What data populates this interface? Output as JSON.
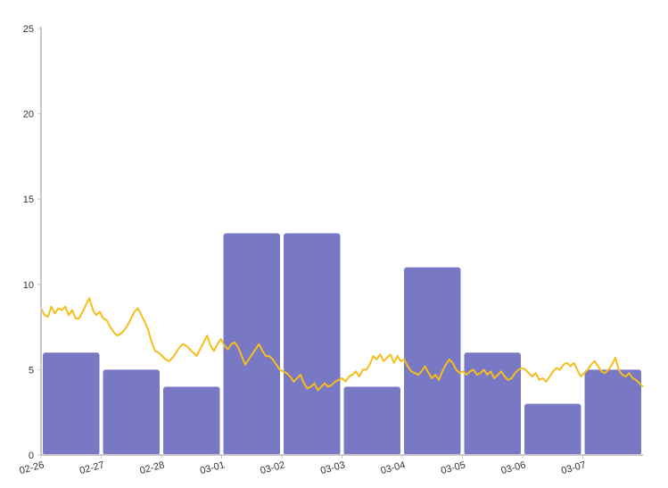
{
  "chart_data": {
    "type": "bar",
    "title": "",
    "xlabel": "",
    "ylabel": "",
    "ylim": [
      0,
      25
    ],
    "yticks": [
      0,
      5,
      10,
      15,
      20,
      25
    ],
    "categories": [
      "02-26",
      "02-27",
      "02-28",
      "03-01",
      "03-02",
      "03-03",
      "03-04",
      "03-05",
      "03-06",
      "03-07"
    ],
    "bar_values": [
      6,
      5,
      4,
      13,
      13,
      4,
      11,
      6,
      3,
      5
    ],
    "line_values": [
      8.6,
      8.2,
      8.1,
      8.7,
      8.3,
      8.6,
      8.5,
      8.7,
      8.2,
      8.5,
      8.0,
      8.0,
      8.4,
      8.8,
      9.2,
      8.5,
      8.2,
      8.4,
      8.0,
      7.9,
      7.5,
      7.2,
      7.0,
      7.1,
      7.3,
      7.6,
      8.0,
      8.4,
      8.6,
      8.2,
      7.8,
      7.3,
      6.6,
      6.1,
      6.0,
      5.8,
      5.6,
      5.5,
      5.7,
      6.0,
      6.3,
      6.5,
      6.4,
      6.2,
      6.0,
      5.8,
      6.2,
      6.6,
      7.0,
      6.4,
      6.1,
      6.5,
      6.8,
      6.4,
      6.2,
      6.5,
      6.6,
      6.3,
      5.8,
      5.3,
      5.6,
      5.9,
      6.2,
      6.5,
      6.1,
      5.8,
      5.8,
      5.6,
      5.3,
      5.0,
      4.9,
      4.8,
      4.6,
      4.3,
      4.5,
      4.7,
      4.2,
      3.9,
      4.0,
      4.2,
      3.8,
      4.0,
      4.2,
      4.0,
      4.1,
      4.3,
      4.4,
      4.5,
      4.3,
      4.6,
      4.7,
      4.9,
      4.6,
      5.0,
      5.0,
      5.3,
      5.8,
      5.6,
      5.9,
      5.5,
      5.7,
      5.9,
      5.4,
      5.8,
      5.5,
      5.6,
      5.2,
      4.9,
      4.8,
      4.7,
      4.9,
      5.2,
      4.8,
      4.5,
      4.7,
      4.4,
      4.9,
      5.3,
      5.6,
      5.4,
      5.0,
      4.8,
      4.9,
      4.7,
      4.9,
      5.0,
      4.7,
      4.8,
      5.0,
      4.7,
      4.9,
      4.5,
      4.7,
      4.9,
      4.6,
      4.4,
      4.5,
      4.8,
      5.0,
      5.1,
      5.0,
      4.8,
      4.6,
      4.8,
      4.4,
      4.5,
      4.3,
      4.6,
      4.9,
      5.1,
      5.0,
      5.3,
      5.4,
      5.2,
      5.4,
      5.0,
      4.6,
      4.8,
      5.0,
      5.3,
      5.5,
      5.2,
      4.9,
      4.8,
      5.0,
      5.3,
      5.7,
      5.0,
      4.7,
      4.6,
      4.8,
      4.5,
      4.4,
      4.2,
      4.0
    ],
    "grid": false,
    "legend": "none",
    "colors": {
      "bar": "#7878c4",
      "line": "#f6be1a",
      "axis": "#c8c8c8",
      "text": "#333333"
    }
  }
}
